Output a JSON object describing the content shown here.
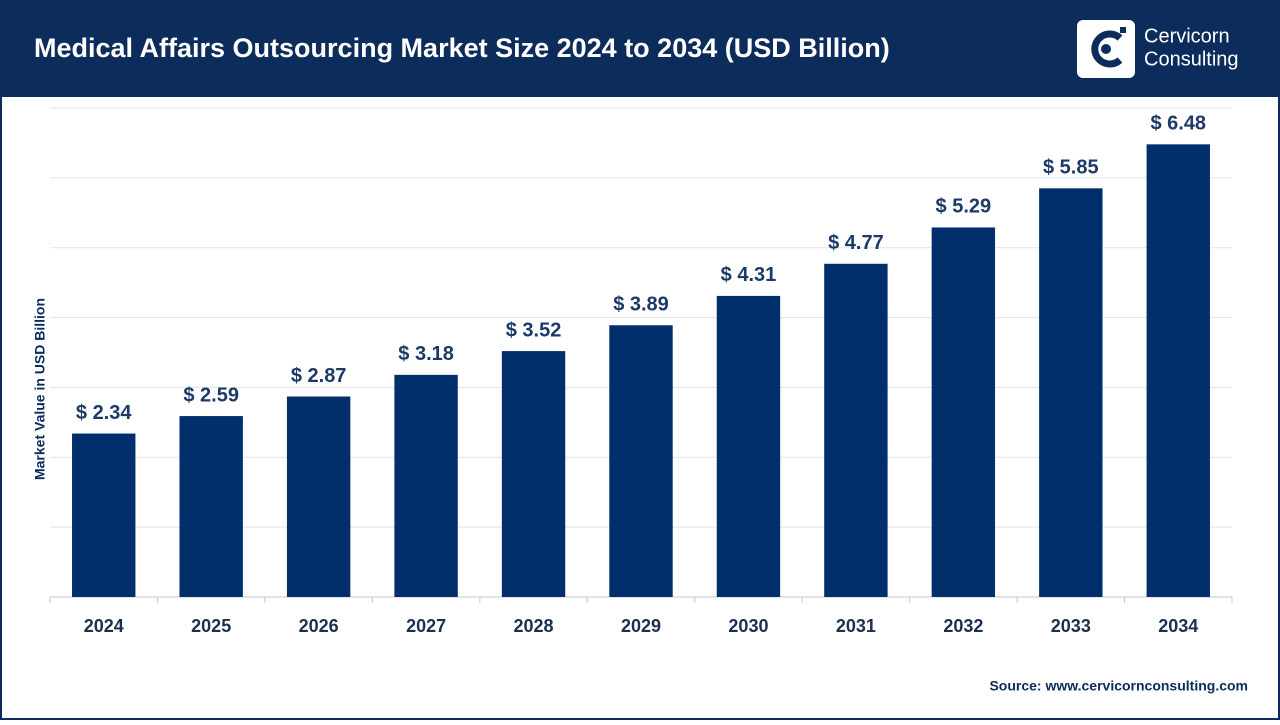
{
  "chart_data": {
    "type": "bar",
    "title": "Medical Affairs Outsourcing Market Size 2024 to 2034 (USD Billion)",
    "brand": [
      "Cervicorn",
      "Consulting"
    ],
    "ylabel": "Market Value in USD Billion",
    "categories": [
      "2024",
      "2025",
      "2026",
      "2027",
      "2028",
      "2029",
      "2030",
      "2031",
      "2032",
      "2033",
      "2034"
    ],
    "values": [
      2.34,
      2.59,
      2.87,
      3.18,
      3.52,
      3.89,
      4.31,
      4.77,
      5.29,
      5.85,
      6.48
    ],
    "value_labels": [
      "$ 2.34",
      "$ 2.59",
      "$ 2.87",
      "$ 3.18",
      "$ 3.52",
      "$ 3.89",
      "$ 4.31",
      "$ 4.77",
      "$ 5.29",
      "$ 5.85",
      "$ 6.48"
    ],
    "color": "#002f6c",
    "ylim": [
      0,
      7
    ],
    "yticks": [
      0,
      1,
      2,
      3,
      4,
      5,
      6,
      7
    ],
    "grid": true,
    "source": "Source: www.cervicornconsulting.com"
  }
}
